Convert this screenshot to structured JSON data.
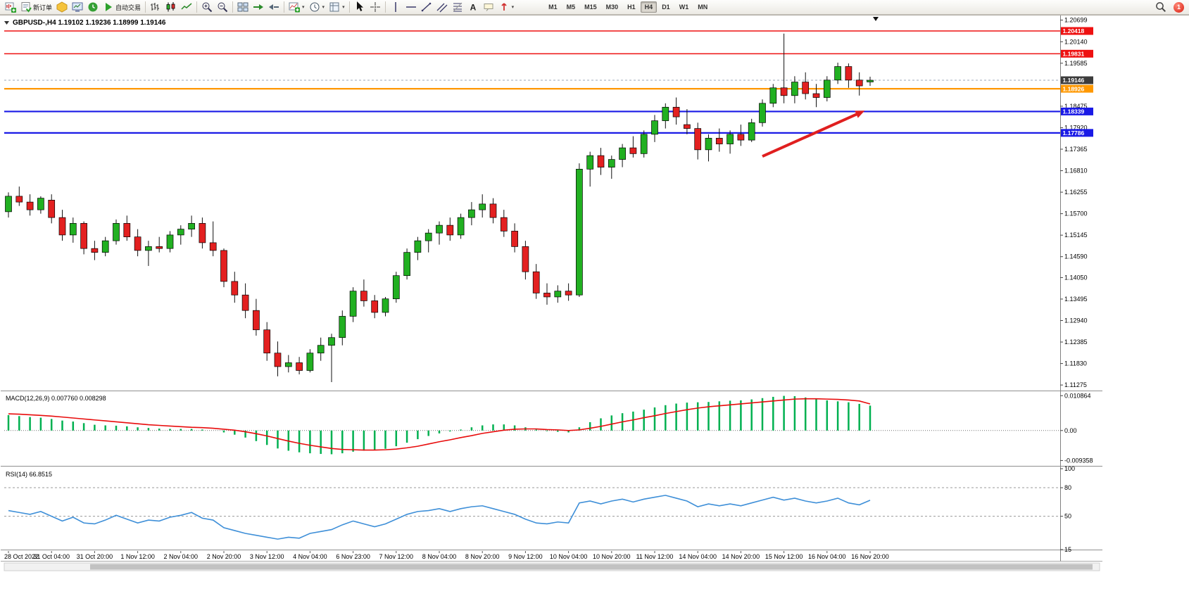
{
  "toolbar": {
    "buttons": [
      {
        "name": "new-chart",
        "icon": "chart-plus",
        "label": ""
      },
      {
        "name": "new-order",
        "icon": "new-order",
        "label": "新订单"
      },
      {
        "name": "metaeditor",
        "icon": "metaeditor",
        "label": ""
      },
      {
        "name": "market-watch",
        "icon": "market-watch",
        "label": ""
      },
      {
        "name": "history-center",
        "icon": "history-center",
        "label": ""
      },
      {
        "name": "autotrading",
        "icon": "autotrading",
        "label": "自动交易"
      },
      {
        "sep": true
      },
      {
        "name": "bar-chart-mode",
        "icon": "bars",
        "label": ""
      },
      {
        "name": "candlestick-mode",
        "icon": "candles",
        "label": ""
      },
      {
        "name": "line-chart-mode",
        "icon": "line-mode",
        "label": ""
      },
      {
        "sep": true
      },
      {
        "name": "zoom-in",
        "icon": "zoom-in",
        "label": ""
      },
      {
        "name": "zoom-out",
        "icon": "zoom-out",
        "label": ""
      },
      {
        "sep": true
      },
      {
        "name": "tile-windows",
        "icon": "tile",
        "label": ""
      },
      {
        "name": "auto-scroll",
        "icon": "autoscroll",
        "label": ""
      },
      {
        "name": "chart-shift",
        "icon": "chart-shift",
        "label": ""
      },
      {
        "sep": true
      },
      {
        "name": "indicators",
        "icon": "indicator-add",
        "label": "",
        "dropdown": true
      },
      {
        "name": "periods",
        "icon": "clock",
        "label": "",
        "dropdown": true
      },
      {
        "name": "templates",
        "icon": "template",
        "label": "",
        "dropdown": true
      },
      {
        "sep": true
      },
      {
        "name": "cursor",
        "icon": "cursor",
        "label": ""
      },
      {
        "name": "crosshair",
        "icon": "crosshair",
        "label": ""
      },
      {
        "sep": true
      },
      {
        "name": "vertical-line",
        "icon": "vline",
        "label": ""
      },
      {
        "name": "horizontal-line",
        "icon": "hline",
        "label": ""
      },
      {
        "name": "trendline",
        "icon": "trendline",
        "label": ""
      },
      {
        "name": "equidistant-channel",
        "icon": "channel",
        "label": ""
      },
      {
        "name": "fibonacci-retracement",
        "icon": "fibo",
        "label": ""
      },
      {
        "name": "text",
        "icon": "text",
        "label": ""
      },
      {
        "name": "text-label",
        "icon": "label",
        "label": ""
      },
      {
        "name": "arrow-objects",
        "icon": "arrows",
        "label": "",
        "dropdown": true
      }
    ],
    "timeframes": {
      "items": [
        "M1",
        "M5",
        "M15",
        "M30",
        "H1",
        "H4",
        "D1",
        "W1",
        "MN"
      ],
      "active": "H4"
    },
    "right": {
      "notification_count": "1"
    }
  },
  "chart": {
    "title": "GBPUSD-,H4 1.19102 1.19236 1.18999 1.19146",
    "macd_label": "MACD(12,26,9) 0.007760 0.008298",
    "rsi_label": "RSI(14) 66.8515"
  },
  "chart_data": {
    "type": "candlestick",
    "symbol": "GBPUSD-",
    "timeframe": "H4",
    "ohlc_display": {
      "open": "1.19102",
      "high": "1.19236",
      "low": "1.18999",
      "close": "1.19146"
    },
    "price_axis": {
      "ticks": [
        "1.20699",
        "1.20140",
        "1.19585",
        "1.18475",
        "1.17920",
        "1.17365",
        "1.16810",
        "1.16255",
        "1.15700",
        "1.15145",
        "1.14590",
        "1.14050",
        "1.13495",
        "1.12940",
        "1.12385",
        "1.11830",
        "1.11275"
      ],
      "range": [
        1.1115,
        1.208
      ]
    },
    "level_lines": [
      {
        "price": 1.20418,
        "label": "1.20418",
        "color": "#ee1111",
        "width": 1.5
      },
      {
        "price": 1.19831,
        "label": "1.19831",
        "color": "#ee1111",
        "width": 1.5
      },
      {
        "price": 1.18926,
        "label": "1.18926",
        "color": "#ff9800",
        "width": 2.2
      },
      {
        "price": 1.18339,
        "label": "1.18339",
        "color": "#1a1ae6",
        "width": 2.2
      },
      {
        "price": 1.17786,
        "label": "1.17786",
        "color": "#1a1ae6",
        "width": 2.2
      }
    ],
    "current_price": {
      "value": 1.19146,
      "label": "1.19146",
      "tag_color": "#3c3c3c"
    },
    "annotation_arrow": {
      "from_bar": 70,
      "from_price": 1.1718,
      "to_bar": 79.5,
      "to_price": 1.1836,
      "color": "#e01f1f"
    },
    "candle_colors": {
      "up": "#21b021",
      "down": "#e32020",
      "wick": "#111111"
    },
    "candles": [
      [
        1.1575,
        1.1625,
        1.156,
        1.1615
      ],
      [
        1.1615,
        1.164,
        1.159,
        1.16
      ],
      [
        1.16,
        1.162,
        1.1565,
        1.158
      ],
      [
        1.158,
        1.1615,
        1.157,
        1.161
      ],
      [
        1.1605,
        1.162,
        1.1545,
        1.156
      ],
      [
        1.156,
        1.158,
        1.15,
        1.1515
      ],
      [
        1.1515,
        1.156,
        1.1495,
        1.1545
      ],
      [
        1.1545,
        1.155,
        1.1465,
        1.148
      ],
      [
        1.148,
        1.15,
        1.145,
        1.147
      ],
      [
        1.147,
        1.151,
        1.146,
        1.15
      ],
      [
        1.15,
        1.1555,
        1.149,
        1.1545
      ],
      [
        1.1545,
        1.1565,
        1.15,
        1.151
      ],
      [
        1.151,
        1.153,
        1.146,
        1.1475
      ],
      [
        1.1475,
        1.15,
        1.1435,
        1.1485
      ],
      [
        1.1485,
        1.151,
        1.147,
        1.148
      ],
      [
        1.148,
        1.1525,
        1.147,
        1.1515
      ],
      [
        1.1515,
        1.154,
        1.149,
        1.153
      ],
      [
        1.153,
        1.1565,
        1.151,
        1.1545
      ],
      [
        1.1545,
        1.156,
        1.148,
        1.1495
      ],
      [
        1.1495,
        1.155,
        1.146,
        1.1475
      ],
      [
        1.1475,
        1.148,
        1.138,
        1.1395
      ],
      [
        1.1395,
        1.142,
        1.134,
        1.136
      ],
      [
        1.136,
        1.139,
        1.13,
        1.132
      ],
      [
        1.132,
        1.135,
        1.1255,
        1.127
      ],
      [
        1.127,
        1.129,
        1.119,
        1.121
      ],
      [
        1.121,
        1.124,
        1.115,
        1.1175
      ],
      [
        1.1175,
        1.1205,
        1.116,
        1.1185
      ],
      [
        1.1185,
        1.12,
        1.1155,
        1.1165
      ],
      [
        1.1165,
        1.122,
        1.116,
        1.121
      ],
      [
        1.121,
        1.125,
        1.119,
        1.123
      ],
      [
        1.123,
        1.126,
        1.1135,
        1.125
      ],
      [
        1.125,
        1.132,
        1.123,
        1.1305
      ],
      [
        1.1305,
        1.138,
        1.129,
        1.137
      ],
      [
        1.137,
        1.14,
        1.133,
        1.1345
      ],
      [
        1.1345,
        1.136,
        1.13,
        1.1315
      ],
      [
        1.1315,
        1.1355,
        1.1305,
        1.135
      ],
      [
        1.135,
        1.142,
        1.134,
        1.141
      ],
      [
        1.141,
        1.148,
        1.14,
        1.147
      ],
      [
        1.147,
        1.151,
        1.145,
        1.15
      ],
      [
        1.15,
        1.153,
        1.147,
        1.152
      ],
      [
        1.152,
        1.155,
        1.149,
        1.154
      ],
      [
        1.154,
        1.156,
        1.15,
        1.1515
      ],
      [
        1.1515,
        1.157,
        1.1505,
        1.156
      ],
      [
        1.156,
        1.16,
        1.154,
        1.158
      ],
      [
        1.158,
        1.162,
        1.156,
        1.1595
      ],
      [
        1.1595,
        1.161,
        1.1545,
        1.156
      ],
      [
        1.156,
        1.158,
        1.151,
        1.1525
      ],
      [
        1.1525,
        1.1545,
        1.147,
        1.1485
      ],
      [
        1.1485,
        1.15,
        1.14,
        1.142
      ],
      [
        1.142,
        1.144,
        1.135,
        1.1365
      ],
      [
        1.1365,
        1.139,
        1.1335,
        1.1355
      ],
      [
        1.1355,
        1.1385,
        1.134,
        1.137
      ],
      [
        1.137,
        1.139,
        1.1345,
        1.136
      ],
      [
        1.136,
        1.17,
        1.1355,
        1.1685
      ],
      [
        1.1685,
        1.173,
        1.164,
        1.172
      ],
      [
        1.172,
        1.174,
        1.167,
        1.169
      ],
      [
        1.169,
        1.172,
        1.166,
        1.171
      ],
      [
        1.171,
        1.175,
        1.169,
        1.174
      ],
      [
        1.174,
        1.177,
        1.1715,
        1.1725
      ],
      [
        1.1725,
        1.1785,
        1.1715,
        1.1775
      ],
      [
        1.1775,
        1.1825,
        1.1755,
        1.181
      ],
      [
        1.181,
        1.1855,
        1.179,
        1.1845
      ],
      [
        1.1845,
        1.187,
        1.18,
        1.182
      ],
      [
        1.18,
        1.184,
        1.1775,
        1.179
      ],
      [
        1.179,
        1.1805,
        1.171,
        1.1735
      ],
      [
        1.1735,
        1.1775,
        1.1705,
        1.1765
      ],
      [
        1.1765,
        1.179,
        1.173,
        1.175
      ],
      [
        1.175,
        1.1785,
        1.1725,
        1.1775
      ],
      [
        1.1775,
        1.18,
        1.1745,
        1.176
      ],
      [
        1.176,
        1.1815,
        1.1755,
        1.1805
      ],
      [
        1.1805,
        1.1865,
        1.1795,
        1.1855
      ],
      [
        1.1855,
        1.1905,
        1.1845,
        1.1895
      ],
      [
        1.1895,
        1.2035,
        1.1855,
        1.1875
      ],
      [
        1.1875,
        1.1925,
        1.1855,
        1.191
      ],
      [
        1.191,
        1.1935,
        1.1865,
        1.188
      ],
      [
        1.188,
        1.1905,
        1.1845,
        1.187
      ],
      [
        1.187,
        1.1925,
        1.186,
        1.1915
      ],
      [
        1.1915,
        1.196,
        1.1905,
        1.195
      ],
      [
        1.195,
        1.1958,
        1.1895,
        1.1915
      ],
      [
        1.1915,
        1.1935,
        1.1875,
        1.19
      ],
      [
        1.19102,
        1.19236,
        1.18999,
        1.19146
      ]
    ],
    "time_axis": {
      "bars_per_label": 4,
      "labels": [
        "28 Oct 2022",
        "31 Oct 04:00",
        "31 Oct 20:00",
        "1 Nov 12:00",
        "2 Nov 04:00",
        "2 Nov 20:00",
        "3 Nov 12:00",
        "4 Nov 04:00",
        "6 Nov 23:00",
        "7 Nov 12:00",
        "8 Nov 04:00",
        "8 Nov 20:00",
        "9 Nov 12:00",
        "10 Nov 04:00",
        "10 Nov 20:00",
        "11 Nov 12:00",
        "14 Nov 04:00",
        "14 Nov 20:00",
        "15 Nov 12:00",
        "16 Nov 04:00",
        "16 Nov 20:00"
      ]
    },
    "macd": {
      "label": "MACD(12,26,9) 0.007760 0.008298",
      "scale": [
        "0.010864",
        "0.00",
        "-0.009358"
      ],
      "scale_values": [
        0.010864,
        0,
        -0.009358
      ],
      "range": [
        -0.0108,
        0.0118
      ],
      "colors": {
        "histogram": "#00b050",
        "signal": "#e80c0c"
      },
      "histogram": [
        0.0048,
        0.0045,
        0.0042,
        0.004,
        0.0036,
        0.0031,
        0.0028,
        0.0023,
        0.0018,
        0.0016,
        0.0015,
        0.0013,
        0.001,
        0.0008,
        0.0006,
        0.0005,
        0.0005,
        0.0005,
        0.0003,
        0.0,
        -0.0006,
        -0.0013,
        -0.0022,
        -0.0033,
        -0.0045,
        -0.0056,
        -0.0063,
        -0.0068,
        -0.0071,
        -0.0073,
        -0.0074,
        -0.0071,
        -0.0066,
        -0.0063,
        -0.0061,
        -0.0057,
        -0.0049,
        -0.0038,
        -0.0027,
        -0.0017,
        -0.0009,
        -0.0003,
        0.0003,
        0.001,
        0.0016,
        0.0019,
        0.0019,
        0.0016,
        0.001,
        0.0003,
        -0.0002,
        -0.0004,
        -0.0006,
        0.001,
        0.0026,
        0.0038,
        0.0047,
        0.0054,
        0.0059,
        0.0065,
        0.0072,
        0.0079,
        0.0084,
        0.0087,
        0.0088,
        0.0089,
        0.0091,
        0.0093,
        0.0094,
        0.0097,
        0.0101,
        0.0105,
        0.0108,
        0.0107,
        0.0103,
        0.0098,
        0.0094,
        0.0091,
        0.0088,
        0.0083,
        0.00776
      ],
      "signal": [
        0.0052,
        0.0051,
        0.0049,
        0.0047,
        0.0045,
        0.0042,
        0.0039,
        0.0036,
        0.0033,
        0.003,
        0.0027,
        0.0024,
        0.0021,
        0.0018,
        0.0016,
        0.0014,
        0.0012,
        0.001,
        0.0009,
        0.0007,
        0.0004,
        0.0001,
        -0.0004,
        -0.001,
        -0.0017,
        -0.0025,
        -0.0033,
        -0.004,
        -0.0046,
        -0.0051,
        -0.0056,
        -0.0059,
        -0.006,
        -0.0061,
        -0.0061,
        -0.006,
        -0.0058,
        -0.0054,
        -0.0049,
        -0.0042,
        -0.0035,
        -0.0029,
        -0.0022,
        -0.0016,
        -0.0009,
        -0.0004,
        0.0001,
        0.0004,
        0.0005,
        0.0005,
        0.0003,
        0.0002,
        0.0,
        0.0002,
        0.0007,
        0.0013,
        0.002,
        0.0027,
        0.0033,
        0.004,
        0.0046,
        0.0053,
        0.0059,
        0.0065,
        0.007,
        0.0074,
        0.0077,
        0.008,
        0.0083,
        0.0086,
        0.0089,
        0.0092,
        0.0095,
        0.0098,
        0.0099,
        0.0099,
        0.0098,
        0.0097,
        0.0095,
        0.0092,
        0.008298
      ]
    },
    "rsi": {
      "label": "RSI(14) 66.8515",
      "scale": [
        "100",
        "80",
        "50",
        "15"
      ],
      "scale_values": [
        100,
        80,
        50,
        15
      ],
      "levels": [
        80,
        50
      ],
      "range": [
        15,
        100
      ],
      "color": "#3e8fd8",
      "values": [
        56,
        54,
        52,
        55,
        50,
        45,
        49,
        43,
        42,
        46,
        51,
        47,
        43,
        46,
        45,
        49,
        51,
        54,
        48,
        46,
        38,
        35,
        32,
        30,
        28,
        26,
        28,
        27,
        32,
        34,
        36,
        41,
        45,
        42,
        39,
        42,
        47,
        52,
        55,
        56,
        58,
        55,
        58,
        60,
        61,
        58,
        55,
        52,
        47,
        43,
        42,
        44,
        43,
        64,
        66,
        63,
        66,
        68,
        65,
        68,
        70,
        72,
        69,
        66,
        60,
        63,
        61,
        63,
        61,
        64,
        67,
        70,
        67,
        69,
        66,
        64,
        66,
        69,
        64,
        62,
        66.85
      ]
    }
  }
}
